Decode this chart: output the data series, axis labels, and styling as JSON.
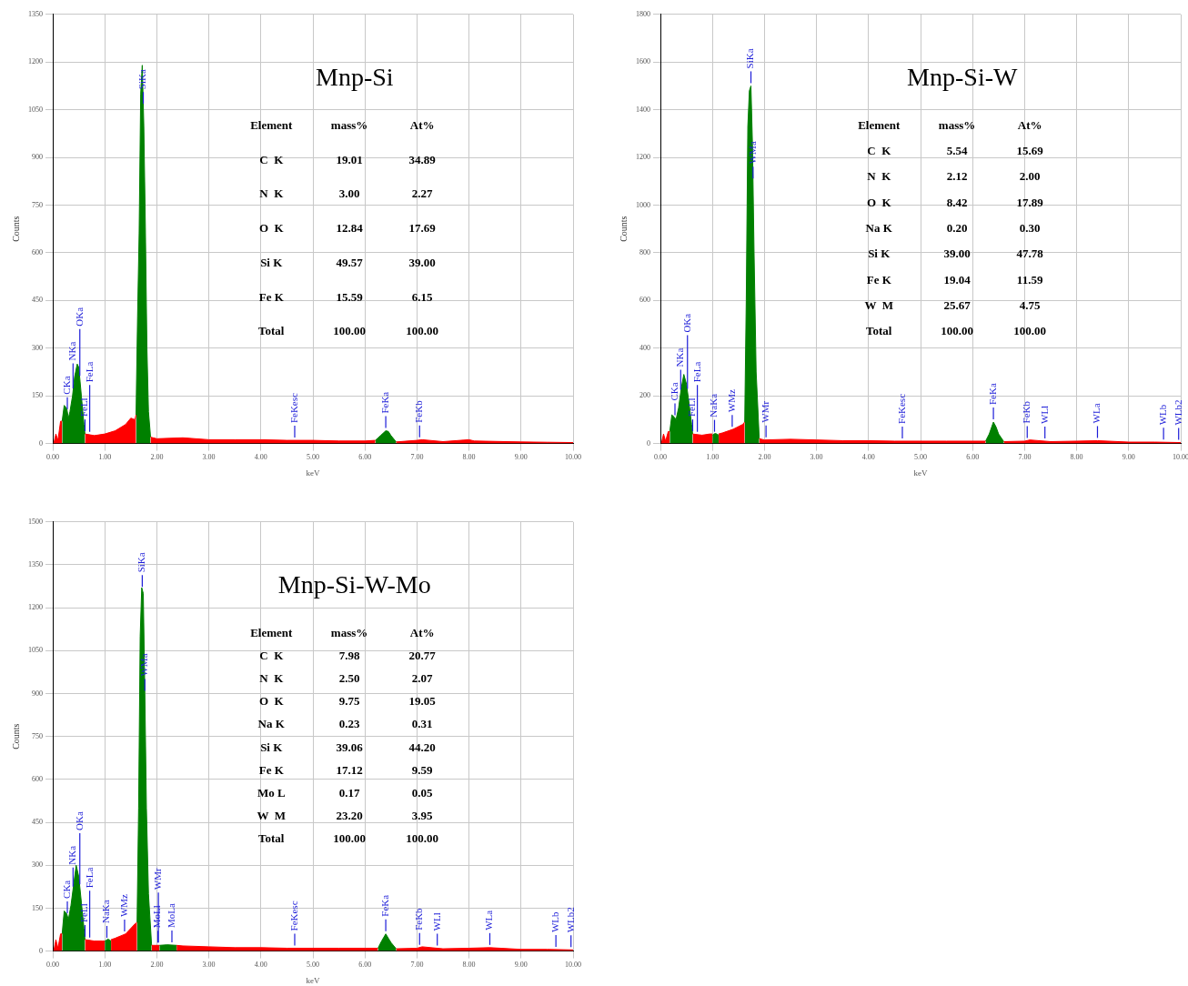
{
  "chart_data": [
    {
      "type": "area",
      "title": "Mnp-Si",
      "xlabel": "keV",
      "ylabel": "Counts",
      "xlim": [
        0,
        10
      ],
      "ylim": [
        0,
        1350
      ],
      "grid": true,
      "xticks": [
        {
          "value": 0,
          "label": "0.00"
        },
        {
          "value": 1,
          "label": "1.00"
        },
        {
          "value": 2,
          "label": "2.00"
        },
        {
          "value": 3,
          "label": "3.00"
        },
        {
          "value": 4,
          "label": "4.00"
        },
        {
          "value": 5,
          "label": "5.00"
        },
        {
          "value": 6,
          "label": "6.00"
        },
        {
          "value": 7,
          "label": "7.00"
        },
        {
          "value": 8,
          "label": "8.00"
        },
        {
          "value": 9,
          "label": "9.00"
        },
        {
          "value": 10,
          "label": "10.00"
        }
      ],
      "yticks": [
        0,
        150,
        300,
        450,
        600,
        750,
        900,
        1050,
        1200,
        1350
      ],
      "series": [
        {
          "color": "#ff0000",
          "x": [
            0.02,
            0.06,
            0.1,
            0.15,
            0.18,
            0.4,
            0.62,
            0.8,
            1.0,
            1.2,
            1.4,
            1.5,
            1.58,
            1.6,
            1.75,
            1.88,
            2.0,
            2.5,
            3.0,
            3.5,
            4.0,
            4.5,
            5.0,
            5.5,
            6.0,
            6.2,
            6.4,
            6.6,
            7.0,
            7.1,
            7.5,
            8.0,
            8.1,
            9.0,
            9.5,
            10.0
          ],
          "values": [
            0,
            30,
            10,
            70,
            70,
            null,
            30,
            25,
            30,
            40,
            60,
            80,
            75,
            90,
            null,
            20,
            15,
            18,
            12,
            12,
            12,
            10,
            10,
            8,
            8,
            10,
            null,
            5,
            10,
            12,
            6,
            12,
            8,
            5,
            4,
            3
          ]
        },
        {
          "color": "#008000",
          "x": [
            0.18,
            0.22,
            0.27,
            0.3,
            0.33,
            0.38,
            0.42,
            0.47,
            0.5,
            0.55,
            0.6,
            0.62,
            1.0,
            1.6,
            1.63,
            1.66,
            1.69,
            1.72,
            1.75,
            1.78,
            1.81,
            1.84,
            1.88,
            4.0,
            6.2,
            6.3,
            6.4,
            6.45,
            6.5,
            6.6
          ],
          "values": [
            70,
            120,
            110,
            80,
            100,
            150,
            210,
            250,
            240,
            150,
            60,
            30,
            null,
            90,
            400,
            660,
            1100,
            1190,
            1000,
            680,
            300,
            100,
            20,
            null,
            10,
            25,
            40,
            38,
            25,
            5
          ]
        }
      ],
      "annotations": [
        "Element",
        "mass%",
        "At%",
        "C  K",
        "19.01",
        "34.89",
        "N  K",
        "3.00",
        "2.27",
        "O  K",
        "12.84",
        "17.69",
        "Si K",
        "49.57",
        "39.00",
        "Fe K",
        "15.59",
        "6.15",
        "Total",
        "100.00",
        "100.00",
        {
          "text": "CKa",
          "x": 0.28,
          "y": 100
        },
        {
          "text": "NKa",
          "x": 0.39,
          "y": 165
        },
        {
          "text": "OKa",
          "x": 0.52,
          "y": 204
        },
        {
          "text": "FeLl",
          "x": 0.62,
          "y": 30
        },
        {
          "text": "FeLa",
          "x": 0.71,
          "y": 28
        },
        {
          "text": "SiKa",
          "x": 1.74,
          "y": 1060
        },
        {
          "text": "FeKesc",
          "x": 4.65,
          "y": 10
        },
        {
          "text": "FeKa",
          "x": 6.4,
          "y": 40
        },
        {
          "text": "FeKb",
          "x": 7.05,
          "y": 11
        }
      ]
    },
    {
      "type": "area",
      "title": "Mnp-Si-W",
      "xlabel": "keV",
      "ylabel": "Counts",
      "xlim": [
        0,
        10
      ],
      "ylim": [
        0,
        1800
      ],
      "grid": true,
      "xticks": [
        {
          "value": 0,
          "label": "0.00"
        },
        {
          "value": 1,
          "label": "1.00"
        },
        {
          "value": 2,
          "label": "2.00"
        },
        {
          "value": 3,
          "label": "3.00"
        },
        {
          "value": 4,
          "label": "4.00"
        },
        {
          "value": 5,
          "label": "5.00"
        },
        {
          "value": 6,
          "label": "6.00"
        },
        {
          "value": 7,
          "label": "7.00"
        },
        {
          "value": 8,
          "label": "8.00"
        },
        {
          "value": 9,
          "label": "9.00"
        },
        {
          "value": 10,
          "label": "10.00"
        }
      ],
      "yticks": [
        0,
        200,
        400,
        600,
        800,
        1000,
        1200,
        1400,
        1600,
        1800
      ],
      "series": [
        {
          "color": "#ff0000",
          "x": [
            0.02,
            0.06,
            0.1,
            0.15,
            0.18,
            0.4,
            0.62,
            0.8,
            0.95,
            1.0,
            1.05,
            1.12,
            1.2,
            1.4,
            1.58,
            1.62,
            1.75,
            1.9,
            2.0,
            2.5,
            3.0,
            3.5,
            4.0,
            4.5,
            5.0,
            5.5,
            6.0,
            6.25,
            6.4,
            6.6,
            7.0,
            7.1,
            7.5,
            8.0,
            8.4,
            9.0,
            9.5,
            10.0
          ],
          "values": [
            0,
            40,
            10,
            50,
            50,
            null,
            40,
            35,
            40,
            40,
            null,
            40,
            45,
            60,
            80,
            90,
            null,
            20,
            15,
            18,
            15,
            12,
            12,
            10,
            10,
            10,
            10,
            10,
            null,
            8,
            10,
            15,
            8,
            10,
            12,
            6,
            6,
            4
          ]
        },
        {
          "color": "#008000",
          "x": [
            0.18,
            0.22,
            0.27,
            0.3,
            0.35,
            0.4,
            0.45,
            0.5,
            0.55,
            0.6,
            0.62,
            0.8,
            1.0,
            1.03,
            1.06,
            1.1,
            1.12,
            1.4,
            1.62,
            1.65,
            1.68,
            1.71,
            1.74,
            1.77,
            1.8,
            1.84,
            1.9,
            4.0,
            6.25,
            6.32,
            6.4,
            6.45,
            6.5,
            6.6
          ],
          "values": [
            50,
            120,
            110,
            100,
            150,
            230,
            290,
            250,
            170,
            80,
            40,
            null,
            35,
            40,
            42,
            38,
            35,
            null,
            90,
            600,
            1330,
            1480,
            1500,
            1250,
            800,
            300,
            20,
            null,
            10,
            40,
            90,
            70,
            40,
            8
          ]
        }
      ],
      "annotations": [
        "Element",
        "mass%",
        "At%",
        "C  K",
        "5.54",
        "15.69",
        "N  K",
        "2.12",
        "2.00",
        "O  K",
        "8.42",
        "17.89",
        "Na K",
        "0.20",
        "0.30",
        "Si K",
        "39.00",
        "47.78",
        "Fe K",
        "19.04",
        "11.59",
        "W  M",
        "25.67",
        "4.75",
        "Total",
        "100.00",
        "100.00",
        {
          "text": "CKa",
          "x": 0.28,
          "y": 107
        },
        {
          "text": "NKa",
          "x": 0.39,
          "y": 214
        },
        {
          "text": "OKa",
          "x": 0.52,
          "y": 218
        },
        {
          "text": "FeLl",
          "x": 0.62,
          "y": 40
        },
        {
          "text": "FeLa",
          "x": 0.71,
          "y": 38
        },
        {
          "text": "NaKa",
          "x": 1.04,
          "y": 38
        },
        {
          "text": "WMz",
          "x": 1.38,
          "y": 59
        },
        {
          "text": "SiKa",
          "x": 1.74,
          "y": 1500
        },
        {
          "text": "WMa",
          "x": 1.78,
          "y": 1100
        },
        {
          "text": "WMr",
          "x": 2.03,
          "y": 15
        },
        {
          "text": "FeKesc",
          "x": 4.65,
          "y": 10
        },
        {
          "text": "FeKa",
          "x": 6.4,
          "y": 90
        },
        {
          "text": "FeKb",
          "x": 7.05,
          "y": 12
        },
        {
          "text": "WLl",
          "x": 7.39,
          "y": 10
        },
        {
          "text": "WLa",
          "x": 8.4,
          "y": 12
        },
        {
          "text": "WLb",
          "x": 9.67,
          "y": 5
        },
        {
          "text": "WLb2",
          "x": 9.96,
          "y": 4
        }
      ]
    },
    {
      "type": "area",
      "title": "Mnp-Si-W-Mo",
      "xlabel": "keV",
      "ylabel": "Counts",
      "xlim": [
        0,
        10
      ],
      "ylim": [
        0,
        1500
      ],
      "grid": true,
      "xticks": [
        {
          "value": 0,
          "label": "0.00"
        },
        {
          "value": 1,
          "label": "1.00"
        },
        {
          "value": 2,
          "label": "2.00"
        },
        {
          "value": 3,
          "label": "3.00"
        },
        {
          "value": 4,
          "label": "4.00"
        },
        {
          "value": 5,
          "label": "5.00"
        },
        {
          "value": 6,
          "label": "6.00"
        },
        {
          "value": 7,
          "label": "7.00"
        },
        {
          "value": 8,
          "label": "8.00"
        },
        {
          "value": 9,
          "label": "9.00"
        },
        {
          "value": 10,
          "label": "10.00"
        }
      ],
      "yticks": [
        0,
        150,
        300,
        450,
        600,
        750,
        900,
        1050,
        1200,
        1350,
        1500
      ],
      "series": [
        {
          "color": "#ff0000",
          "x": [
            0.02,
            0.06,
            0.1,
            0.15,
            0.18,
            0.4,
            0.62,
            0.8,
            0.95,
            1.0,
            1.05,
            1.12,
            1.2,
            1.4,
            1.58,
            1.62,
            1.75,
            1.9,
            2.05,
            2.2,
            2.38,
            2.5,
            3.0,
            3.5,
            4.0,
            4.5,
            5.0,
            5.5,
            6.0,
            6.25,
            6.4,
            6.6,
            7.0,
            7.1,
            7.5,
            8.0,
            8.4,
            9.0,
            9.5,
            10.0
          ],
          "values": [
            0,
            40,
            10,
            60,
            60,
            null,
            40,
            35,
            35,
            35,
            null,
            40,
            45,
            60,
            95,
            100,
            null,
            20,
            20,
            null,
            20,
            18,
            15,
            12,
            12,
            10,
            10,
            10,
            10,
            10,
            null,
            8,
            10,
            15,
            8,
            10,
            12,
            6,
            6,
            4
          ]
        },
        {
          "color": "#008000",
          "x": [
            0.18,
            0.22,
            0.27,
            0.3,
            0.35,
            0.4,
            0.45,
            0.5,
            0.55,
            0.6,
            0.62,
            0.8,
            1.0,
            1.03,
            1.06,
            1.1,
            1.12,
            1.4,
            1.62,
            1.65,
            1.68,
            1.71,
            1.74,
            1.77,
            1.8,
            1.84,
            1.9,
            1.97,
            2.05,
            2.2,
            2.38,
            3.0,
            6.25,
            6.32,
            6.4,
            6.45,
            6.5,
            6.6
          ],
          "values": [
            60,
            140,
            130,
            110,
            160,
            230,
            300,
            260,
            170,
            80,
            40,
            null,
            35,
            38,
            42,
            38,
            35,
            null,
            100,
            500,
            1100,
            1270,
            1250,
            900,
            500,
            200,
            20,
            null,
            20,
            22,
            20,
            null,
            10,
            35,
            60,
            45,
            30,
            8
          ]
        }
      ],
      "annotations": [
        "Element",
        "mass%",
        "At%",
        "C  K",
        "7.98",
        "20.77",
        "N  K",
        "2.50",
        "2.07",
        "O  K",
        "9.75",
        "19.05",
        "Na K",
        "0.23",
        "0.31",
        "Si K",
        "39.06",
        "44.20",
        "Fe K",
        "17.12",
        "9.59",
        "Mo L",
        "0.17",
        "0.05",
        "W  M",
        "23.20",
        "3.95",
        "Total",
        "100.00",
        "100.00",
        {
          "text": "CKa",
          "x": 0.28,
          "y": 123
        },
        {
          "text": "NKa",
          "x": 0.39,
          "y": 216
        },
        {
          "text": "OKa",
          "x": 0.52,
          "y": 224
        },
        {
          "text": "FeLl",
          "x": 0.62,
          "y": 40
        },
        {
          "text": "FeLa",
          "x": 0.71,
          "y": 38
        },
        {
          "text": "NaKa",
          "x": 1.04,
          "y": 37
        },
        {
          "text": "WMz",
          "x": 1.38,
          "y": 59
        },
        {
          "text": "SiKa",
          "x": 1.72,
          "y": 1263
        },
        {
          "text": "WMa",
          "x": 1.77,
          "y": 900
        },
        {
          "text": "MoLl",
          "x": 2.02,
          "y": 20
        },
        {
          "text": "WMr",
          "x": 2.03,
          "y": 20
        },
        {
          "text": "MoLa",
          "x": 2.29,
          "y": 21
        },
        {
          "text": "FeKesc",
          "x": 4.65,
          "y": 10
        },
        {
          "text": "FeKa",
          "x": 6.4,
          "y": 60
        },
        {
          "text": "FeKb",
          "x": 7.05,
          "y": 12
        },
        {
          "text": "WLl",
          "x": 7.39,
          "y": 10
        },
        {
          "text": "WLa",
          "x": 8.4,
          "y": 12
        },
        {
          "text": "WLb",
          "x": 9.67,
          "y": 5
        },
        {
          "text": "WLb2",
          "x": 9.96,
          "y": 4
        }
      ]
    }
  ]
}
